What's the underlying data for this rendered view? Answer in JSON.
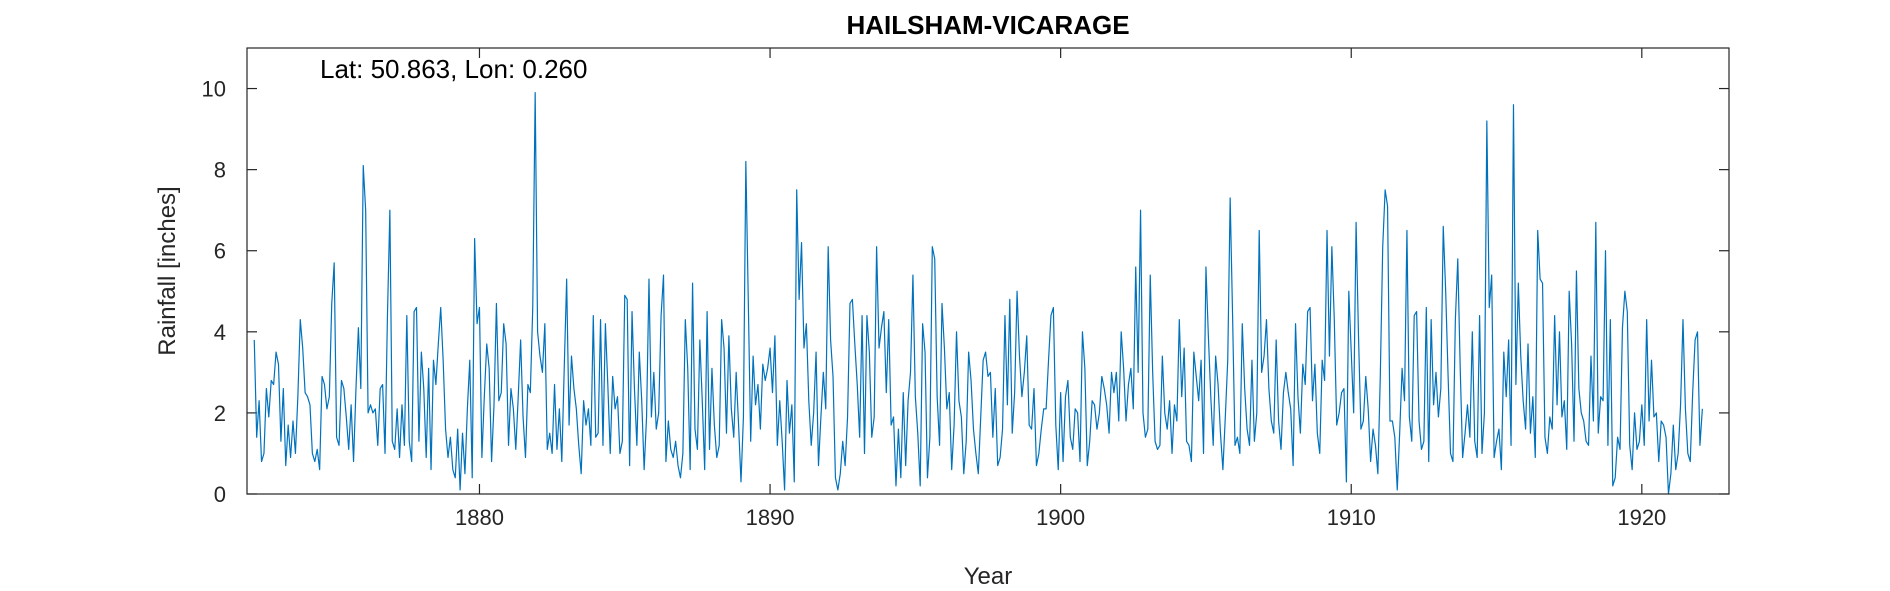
{
  "chart_data": {
    "type": "line",
    "title": "HAILSHAM-VICARAGE",
    "annotation": "Lat: 50.863, Lon: 0.260",
    "xlabel": "Year",
    "ylabel": "Rainfall [inches]",
    "xlim": [
      1872.0,
      1923.0
    ],
    "ylim": [
      0,
      11
    ],
    "xticks": [
      1880,
      1890,
      1900,
      1910,
      1920
    ],
    "yticks": [
      0,
      2,
      4,
      6,
      8,
      10
    ],
    "grid": false,
    "line_color": "#0072bd",
    "start": [
      1872,
      4
    ],
    "sampling": "monthly",
    "values": [
      3.8,
      1.4,
      2.3,
      0.8,
      1.0,
      2.6,
      1.9,
      2.8,
      2.7,
      3.5,
      3.2,
      1.3,
      2.6,
      0.7,
      1.7,
      0.9,
      1.8,
      1.0,
      2.4,
      4.3,
      3.6,
      2.5,
      2.4,
      2.2,
      1.0,
      0.8,
      1.1,
      0.6,
      2.9,
      2.7,
      2.1,
      2.4,
      4.7,
      5.7,
      1.4,
      1.2,
      2.8,
      2.6,
      1.9,
      1.1,
      2.2,
      0.8,
      2.6,
      4.1,
      2.6,
      8.1,
      7.0,
      2.0,
      2.2,
      2.0,
      2.1,
      1.2,
      2.6,
      2.7,
      1.0,
      4.4,
      7.0,
      1.3,
      1.1,
      2.1,
      0.9,
      2.2,
      1.2,
      4.4,
      1.3,
      0.8,
      4.5,
      4.6,
      1.3,
      3.5,
      2.6,
      0.9,
      3.1,
      0.6,
      3.3,
      2.7,
      3.7,
      4.6,
      3.3,
      1.6,
      0.9,
      1.4,
      0.6,
      0.4,
      1.6,
      0.1,
      1.5,
      0.5,
      2.1,
      3.3,
      0.4,
      6.3,
      4.2,
      4.6,
      0.9,
      2.4,
      3.7,
      3.1,
      0.8,
      2.2,
      4.7,
      2.3,
      2.5,
      4.2,
      3.7,
      1.2,
      2.6,
      2.1,
      1.1,
      2.4,
      3.8,
      1.9,
      0.9,
      2.7,
      2.5,
      4.6,
      9.9,
      4.0,
      3.4,
      3.0,
      4.2,
      1.1,
      1.5,
      1.0,
      2.7,
      1.1,
      2.1,
      0.8,
      3.1,
      5.3,
      1.7,
      3.4,
      2.6,
      2.1,
      1.2,
      0.5,
      2.3,
      1.7,
      2.1,
      1.2,
      4.4,
      1.4,
      1.5,
      4.3,
      1.2,
      4.2,
      2.7,
      1.0,
      2.9,
      2.1,
      2.4,
      1.0,
      1.3,
      4.9,
      4.8,
      0.7,
      4.5,
      2.6,
      1.2,
      3.5,
      2.3,
      0.6,
      1.9,
      5.3,
      1.9,
      3.0,
      1.6,
      2.0,
      4.4,
      5.4,
      0.8,
      1.8,
      1.1,
      0.9,
      1.3,
      0.7,
      0.4,
      1.0,
      4.3,
      3.1,
      0.6,
      5.2,
      1.6,
      1.1,
      3.8,
      2.3,
      0.6,
      4.5,
      1.1,
      3.1,
      1.7,
      0.9,
      1.2,
      4.3,
      3.6,
      1.5,
      3.9,
      2.1,
      1.4,
      3.0,
      1.7,
      0.3,
      1.9,
      8.2,
      4.8,
      1.3,
      3.4,
      2.2,
      2.7,
      1.6,
      3.2,
      2.8,
      3.1,
      3.6,
      2.5,
      3.9,
      1.2,
      2.3,
      1.3,
      0.1,
      2.8,
      1.5,
      2.2,
      0.3,
      7.5,
      4.8,
      6.2,
      3.6,
      4.2,
      2.3,
      1.2,
      2.0,
      3.5,
      0.7,
      1.9,
      3.0,
      2.1,
      6.1,
      3.8,
      2.9,
      0.4,
      0.1,
      0.5,
      1.3,
      0.7,
      1.9,
      4.7,
      4.8,
      3.7,
      2.7,
      1.4,
      4.4,
      1.0,
      4.4,
      3.5,
      1.4,
      1.9,
      6.1,
      3.6,
      4.1,
      4.5,
      2.5,
      4.3,
      1.7,
      1.9,
      0.2,
      1.6,
      0.4,
      2.5,
      0.7,
      2.3,
      3.0,
      5.4,
      2.4,
      1.5,
      0.2,
      4.2,
      3.5,
      0.4,
      1.4,
      6.1,
      5.8,
      2.4,
      1.2,
      4.7,
      3.6,
      2.1,
      2.5,
      0.6,
      1.7,
      4.0,
      2.3,
      1.9,
      0.5,
      1.3,
      3.5,
      2.8,
      1.6,
      1.0,
      0.5,
      1.9,
      3.3,
      3.5,
      2.9,
      3.0,
      1.4,
      2.6,
      0.7,
      0.9,
      1.6,
      4.4,
      2.2,
      4.8,
      1.5,
      2.5,
      5.0,
      3.4,
      2.4,
      3.0,
      3.9,
      1.7,
      1.6,
      2.6,
      0.7,
      1.0,
      1.6,
      2.1,
      2.1,
      3.3,
      4.4,
      4.6,
      1.7,
      0.6,
      2.5,
      0.8,
      2.4,
      2.8,
      1.4,
      1.1,
      2.1,
      2.0,
      0.8,
      4.0,
      3.1,
      0.7,
      1.3,
      2.3,
      2.2,
      1.6,
      2.0,
      2.9,
      2.6,
      2.2,
      1.5,
      3.0,
      2.5,
      3.0,
      1.8,
      4.0,
      3.1,
      1.8,
      2.7,
      3.1,
      2.1,
      5.6,
      3.0,
      7.0,
      2.0,
      1.4,
      1.6,
      5.4,
      3.0,
      1.3,
      1.1,
      1.2,
      3.4,
      2.0,
      1.6,
      2.3,
      1.0,
      2.2,
      1.8,
      4.3,
      2.4,
      3.6,
      1.3,
      1.2,
      0.8,
      3.5,
      2.9,
      2.3,
      3.3,
      1.0,
      5.6,
      3.9,
      2.4,
      1.2,
      3.4,
      2.7,
      1.5,
      0.6,
      1.9,
      3.3,
      7.3,
      4.4,
      1.2,
      1.4,
      1.0,
      4.2,
      2.6,
      1.6,
      1.2,
      3.3,
      1.3,
      2.0,
      6.5,
      3.0,
      3.4,
      4.3,
      2.6,
      1.8,
      1.5,
      3.8,
      1.8,
      1.1,
      2.5,
      3.0,
      2.5,
      2.1,
      0.7,
      4.2,
      2.4,
      1.5,
      3.2,
      2.7,
      4.5,
      4.6,
      2.3,
      3.2,
      1.5,
      1.0,
      3.3,
      2.8,
      6.5,
      3.4,
      6.1,
      4.3,
      1.7,
      2.0,
      2.5,
      2.6,
      0.3,
      5.0,
      3.5,
      2.0,
      6.7,
      3.9,
      1.6,
      1.8,
      2.9,
      2.1,
      0.8,
      1.6,
      1.2,
      0.5,
      2.9,
      6.1,
      7.5,
      7.1,
      1.8,
      1.8,
      1.4,
      0.1,
      1.5,
      3.1,
      2.3,
      6.5,
      1.9,
      1.3,
      4.4,
      4.5,
      1.8,
      1.1,
      1.3,
      4.6,
      0.8,
      4.3,
      2.2,
      3.0,
      1.9,
      2.6,
      6.6,
      5.0,
      2.9,
      1.0,
      0.8,
      4.3,
      5.8,
      3.1,
      0.9,
      1.5,
      2.2,
      1.4,
      4.0,
      1.3,
      0.9,
      4.4,
      1.0,
      2.0,
      9.2,
      4.6,
      5.4,
      0.9,
      1.3,
      1.6,
      0.6,
      3.5,
      2.4,
      3.8,
      1.2,
      9.6,
      2.7,
      5.2,
      3.4,
      2.3,
      1.6,
      3.7,
      1.5,
      2.4,
      0.9,
      6.5,
      5.3,
      5.2,
      1.4,
      1.0,
      1.9,
      1.6,
      4.4,
      2.2,
      4.0,
      1.9,
      2.3,
      1.1,
      5.0,
      3.7,
      1.3,
      5.5,
      2.6,
      2.0,
      1.8,
      1.3,
      1.2,
      3.4,
      1.8,
      6.7,
      1.5,
      2.4,
      2.3,
      6.0,
      1.2,
      4.3,
      0.2,
      0.4,
      1.4,
      1.1,
      4.1,
      5.0,
      4.5,
      1.2,
      0.6,
      2.0,
      1.1,
      1.3,
      2.2,
      1.2,
      4.3,
      1.8,
      3.3,
      1.9,
      2.0,
      0.8,
      1.8,
      1.7,
      1.4,
      0.0,
      0.5,
      1.7,
      0.6,
      1.0,
      2.2,
      4.3,
      2.1,
      1.0,
      0.8,
      2.5,
      3.8,
      4.0,
      1.2,
      2.1
    ]
  }
}
